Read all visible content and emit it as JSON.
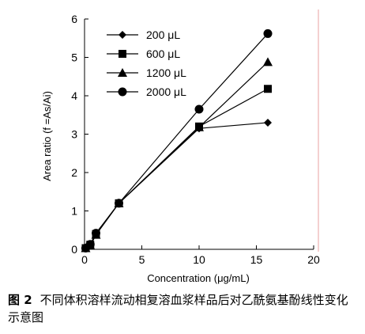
{
  "chart_data": {
    "type": "line",
    "ylabel": "Area ratio  (f =As/Ai)",
    "xlabel": "Concentration (μg/mL)",
    "xlim": [
      0,
      20
    ],
    "ylim": [
      0,
      6
    ],
    "xticks": [
      "0",
      "5",
      "10",
      "15",
      "20"
    ],
    "yticks": [
      "0",
      "1",
      "2",
      "3",
      "4",
      "5",
      "6"
    ],
    "legend_position": "top-left",
    "grid": false,
    "series": [
      {
        "name": "200 μL",
        "marker": "diamond",
        "x": [
          0.1,
          0.5,
          1,
          3,
          10,
          16
        ],
        "y": [
          0.03,
          0.1,
          0.38,
          1.2,
          3.15,
          3.3
        ]
      },
      {
        "name": "600 μL",
        "marker": "square",
        "x": [
          0.1,
          0.5,
          1,
          3,
          10,
          16
        ],
        "y": [
          0.03,
          0.12,
          0.4,
          1.2,
          3.2,
          4.18
        ]
      },
      {
        "name": "1200 μL",
        "marker": "triangle",
        "x": [
          0.1,
          0.5,
          1,
          3,
          10,
          16
        ],
        "y": [
          0.03,
          0.1,
          0.38,
          1.2,
          3.18,
          4.88
        ]
      },
      {
        "name": "2000 μL",
        "marker": "circle",
        "x": [
          0.1,
          0.5,
          1,
          3,
          10,
          16
        ],
        "y": [
          0.03,
          0.13,
          0.42,
          1.2,
          3.65,
          5.62
        ]
      }
    ]
  },
  "caption": {
    "figure_no": "图 2",
    "text": "不同体积溶样流动相复溶血浆样品后对乙酰氨基酚线性变化示意图"
  }
}
